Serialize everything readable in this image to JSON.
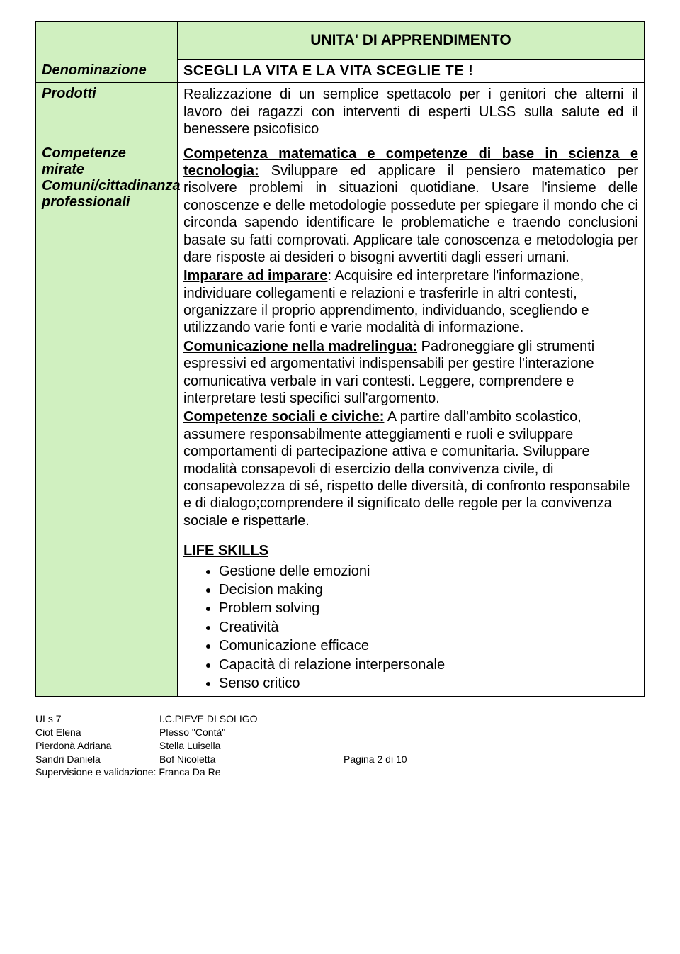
{
  "colors": {
    "header_bg": "#d0f0c0",
    "border": "#000000",
    "text": "#000000",
    "page_bg": "#ffffff"
  },
  "header": {
    "unit_label": "UNITA' DI APPRENDIMENTO"
  },
  "rows": {
    "denominazione": {
      "label": "Denominazione",
      "value": "SCEGLI  LA  VITA  E  LA  VITA  SCEGLIE  TE !"
    },
    "prodotti": {
      "label": "Prodotti",
      "value": "Realizzazione di un semplice spettacolo per i genitori che alterni il lavoro dei ragazzi con interventi di esperti ULSS sulla salute ed  il benessere psicofisico"
    },
    "competenze": {
      "label_line1": "Competenze mirate",
      "label_line2": "Comuni/cittadinanza",
      "label_line3": "professionali",
      "p1_heading": "Competenza matematica e competenze di base in scienza e tecnologia:",
      "p1_body": " Sviluppare ed applicare il pensiero matematico per risolvere problemi in situazioni quotidiane.  Usare l'insieme delle conoscenze e delle metodologie possedute per spiegare il mondo che ci circonda sapendo identificare le problematiche e traendo conclusioni basate su fatti comprovati. Applicare tale conoscenza e metodologia per dare risposte ai desideri o bisogni avvertiti dagli esseri umani.",
      "p2_heading": "Imparare ad imparare",
      "p2_body": ": Acquisire ed interpretare l'informazione, individuare collegamenti e relazioni e trasferirle in altri contesti, organizzare il proprio apprendimento, individuando, scegliendo e utilizzando varie fonti e varie modalità di informazione.",
      "p3_heading": "Comunicazione nella madrelingua:",
      "p3_body": " Padroneggiare gli strumenti espressivi ed argomentativi indispensabili per gestire l'interazione comunicativa verbale in vari contesti. Leggere, comprendere e interpretare testi specifici sull'argomento.",
      "p4_heading": "Competenze sociali e civiche:",
      "p4_body": " A partire dall'ambito scolastico, assumere responsabilmente atteggiamenti e ruoli e sviluppare comportamenti di partecipazione attiva e comunitaria. Sviluppare modalità consapevoli di esercizio della convivenza civile, di consapevolezza di sé, rispetto delle diversità, di confronto responsabile e di dialogo;comprendere il significato delle regole per la convivenza sociale e rispettarle.",
      "life_skills_title": "LIFE  SKILLS",
      "life_skills": [
        "Gestione delle emozioni",
        "Decision making",
        "Problem solving",
        "Creatività",
        "Comunicazione efficace",
        "Capacità di relazione interpersonale",
        "Senso critico"
      ]
    }
  },
  "footer": {
    "colA": [
      "ULs 7",
      "Ciot Elena",
      "Pierdonà Adriana",
      "Sandri Daniela"
    ],
    "colB": [
      "I.C.PIEVE DI SOLIGO",
      "Plesso \"Contà\"",
      "Stella Luisella",
      "Bof Nicoletta"
    ],
    "page_str": "Pagina 2 di 10",
    "supervision": "Supervisione e validazione: Franca Da Re"
  }
}
